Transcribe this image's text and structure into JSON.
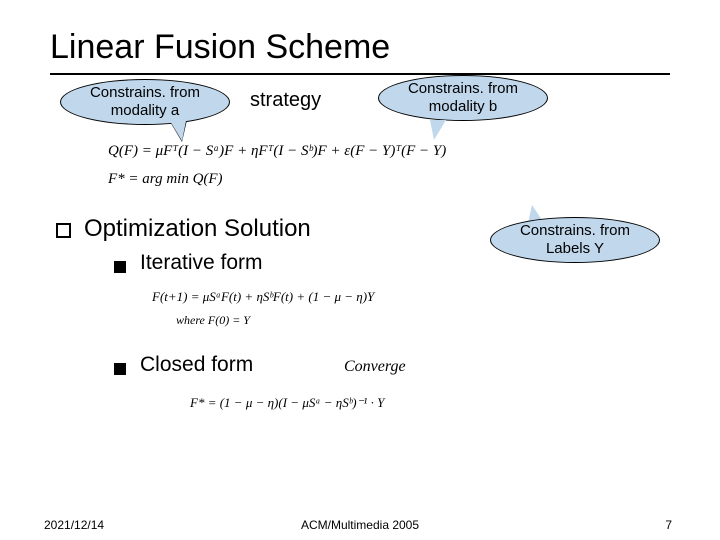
{
  "title": "Linear Fusion Scheme",
  "strategy_label": "strategy",
  "callouts": {
    "modality_a": "Constrains. from\nmodality a",
    "modality_b": "Constrains. from\nmodality b",
    "labels_y": "Constrains. from\nLabels Y"
  },
  "formulas": {
    "q": "Q(F) = μFᵀ(I − Sᵃ)F + ηFᵀ(I − Sᵇ)F + ε(F − Y)ᵀ(F − Y)",
    "fstar": "F* = arg min Q(F)",
    "iterative": "F(t+1) = μSᵃF(t) + ηSᵇF(t) + (1 − μ − η)Y",
    "where": "where F(0) = Y",
    "closed": "F* = (1 − μ − η)(I − μSᵃ − ηSᵇ)⁻¹ · Y"
  },
  "sections": {
    "optimization": "Optimization Solution",
    "iterative": "Iterative form",
    "closed": "Closed form"
  },
  "converge": "Converge",
  "footer": {
    "date": "2021/12/14",
    "venue": "ACM/Multimedia 2005",
    "page": "7"
  },
  "colors": {
    "callout_bg": "#c0d7ec",
    "text": "#000000",
    "bg": "#ffffff"
  }
}
